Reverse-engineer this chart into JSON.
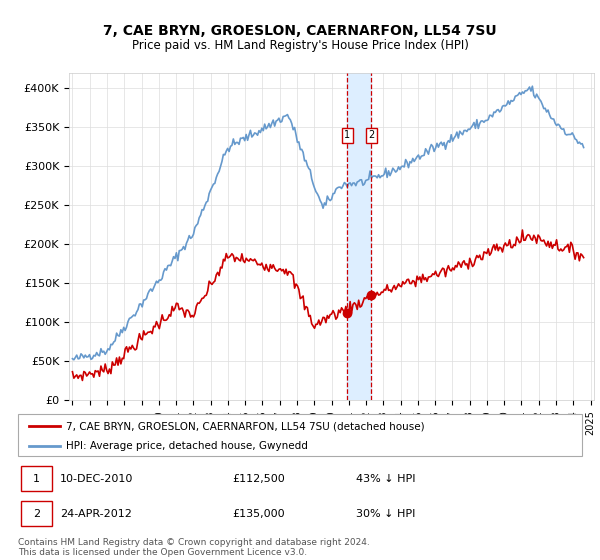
{
  "title": "7, CAE BRYN, GROESLON, CAERNARFON, LL54 7SU",
  "subtitle": "Price paid vs. HM Land Registry's House Price Index (HPI)",
  "ylim": [
    0,
    420000
  ],
  "yticks": [
    0,
    50000,
    100000,
    150000,
    200000,
    250000,
    300000,
    350000,
    400000
  ],
  "ytick_labels": [
    "£0",
    "£50K",
    "£100K",
    "£150K",
    "£200K",
    "£250K",
    "£300K",
    "£350K",
    "£400K"
  ],
  "legend_line1": "7, CAE BRYN, GROESLON, CAERNARFON, LL54 7SU (detached house)",
  "legend_line2": "HPI: Average price, detached house, Gwynedd",
  "marker1_date": "10-DEC-2010",
  "marker1_price": "£112,500",
  "marker1_hpi": "43% ↓ HPI",
  "marker1_year": 2010.92,
  "marker1_value": 112500,
  "marker2_date": "24-APR-2012",
  "marker2_price": "£135,000",
  "marker2_hpi": "30% ↓ HPI",
  "marker2_year": 2012.31,
  "marker2_value": 135000,
  "footnote": "Contains HM Land Registry data © Crown copyright and database right 2024.\nThis data is licensed under the Open Government Licence v3.0.",
  "line_color_red": "#cc0000",
  "line_color_blue": "#6699cc",
  "shade_color": "#ddeeff",
  "background_color": "#ffffff",
  "grid_color": "#dddddd"
}
